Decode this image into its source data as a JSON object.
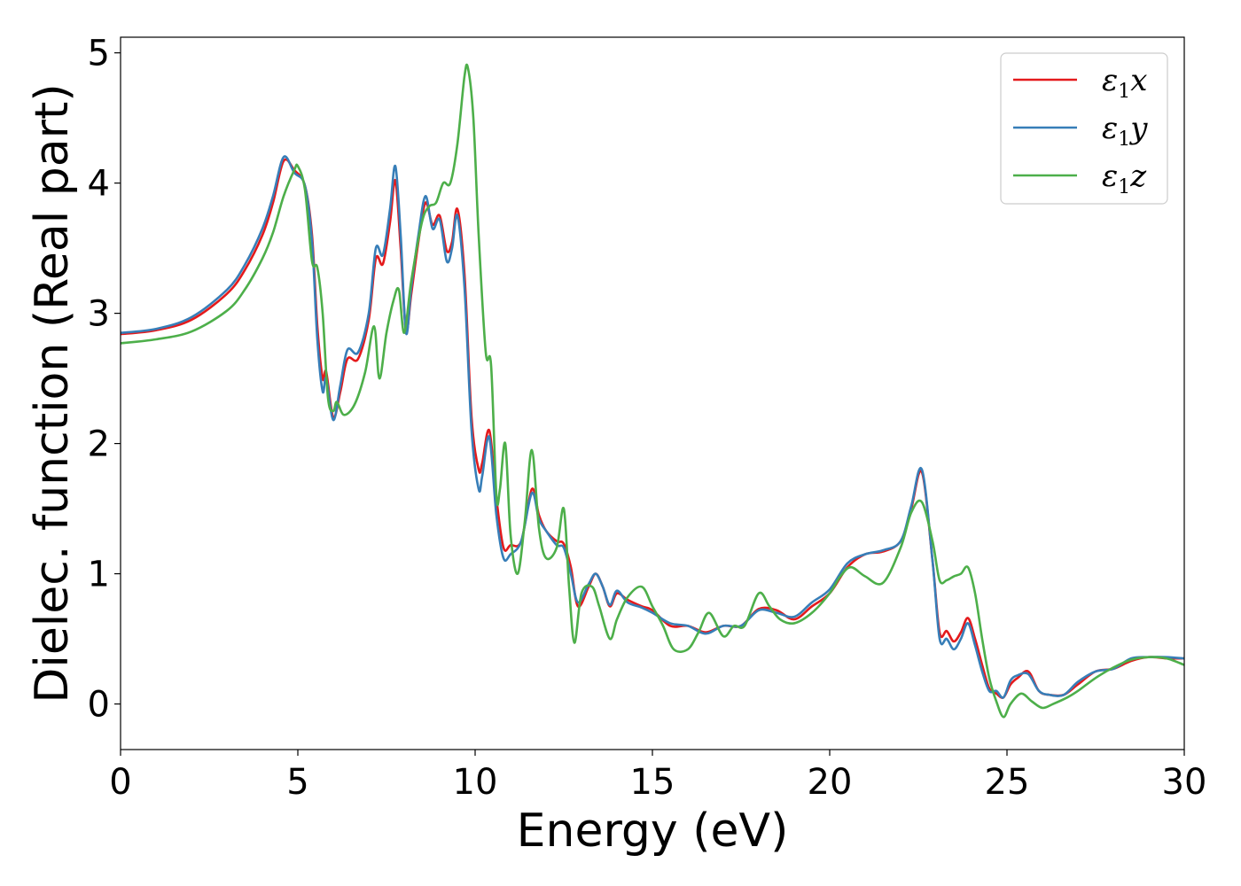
{
  "chart_data": {
    "type": "line",
    "title": "",
    "xlabel": "Energy (eV)",
    "ylabel": "Dielec. function (Real part)",
    "xlim": [
      0,
      30
    ],
    "ylim": [
      -0.35,
      5.12
    ],
    "xticks": [
      0,
      5,
      10,
      15,
      20,
      25,
      30
    ],
    "yticks": [
      0,
      1,
      2,
      3,
      4,
      5
    ],
    "grid": false,
    "legend_position": "top-right",
    "series": [
      {
        "name": "ε1x",
        "legend_base": "ε",
        "legend_sub": "1",
        "legend_tail": "x",
        "color": "#e41a1c",
        "x": [
          0,
          1,
          2,
          3,
          3.5,
          4,
          4.3,
          4.6,
          4.9,
          5.2,
          5.4,
          5.55,
          5.7,
          5.8,
          6.0,
          6.2,
          6.4,
          6.7,
          7.0,
          7.2,
          7.4,
          7.6,
          7.75,
          7.9,
          8.05,
          8.2,
          8.4,
          8.6,
          8.8,
          9.0,
          9.2,
          9.35,
          9.5,
          9.7,
          9.9,
          10.1,
          10.2,
          10.4,
          10.6,
          10.8,
          11.0,
          11.3,
          11.6,
          11.8,
          12.0,
          12.3,
          12.5,
          12.7,
          12.9,
          13.2,
          13.4,
          13.6,
          13.8,
          14.0,
          14.3,
          14.7,
          15.0,
          15.5,
          16.0,
          16.5,
          17.0,
          17.5,
          18.0,
          18.5,
          19.0,
          19.5,
          20.0,
          20.5,
          21.0,
          21.5,
          22.0,
          22.3,
          22.6,
          22.9,
          23.1,
          23.3,
          23.5,
          23.7,
          23.9,
          24.1,
          24.3,
          24.5,
          24.7,
          24.9,
          25.1,
          25.3,
          25.6,
          25.9,
          26.2,
          26.6,
          27.0,
          27.5,
          28.0,
          28.5,
          29.0,
          29.5,
          30.0
        ],
        "y": [
          2.84,
          2.87,
          2.95,
          3.15,
          3.33,
          3.6,
          3.85,
          4.17,
          4.1,
          3.98,
          3.6,
          2.9,
          2.5,
          2.55,
          2.2,
          2.4,
          2.65,
          2.65,
          2.95,
          3.42,
          3.38,
          3.7,
          4.02,
          3.5,
          2.87,
          3.15,
          3.55,
          3.85,
          3.68,
          3.75,
          3.48,
          3.55,
          3.8,
          3.3,
          2.2,
          1.8,
          1.85,
          2.1,
          1.58,
          1.2,
          1.22,
          1.25,
          1.65,
          1.45,
          1.33,
          1.25,
          1.23,
          1.05,
          0.75,
          0.9,
          1.0,
          0.9,
          0.75,
          0.85,
          0.8,
          0.75,
          0.72,
          0.6,
          0.6,
          0.55,
          0.6,
          0.6,
          0.73,
          0.72,
          0.65,
          0.75,
          0.85,
          1.05,
          1.15,
          1.17,
          1.25,
          1.5,
          1.78,
          1.1,
          0.55,
          0.56,
          0.48,
          0.55,
          0.66,
          0.5,
          0.3,
          0.12,
          0.08,
          0.05,
          0.15,
          0.2,
          0.25,
          0.1,
          0.07,
          0.07,
          0.15,
          0.25,
          0.27,
          0.33,
          0.36,
          0.35,
          0.35
        ]
      },
      {
        "name": "ε1y",
        "legend_base": "ε",
        "legend_sub": "1",
        "legend_tail": "y",
        "color": "#377eb8",
        "x": [
          0,
          1,
          2,
          3,
          3.5,
          4,
          4.3,
          4.6,
          4.9,
          5.2,
          5.4,
          5.55,
          5.7,
          5.8,
          6.0,
          6.2,
          6.4,
          6.7,
          7.0,
          7.2,
          7.4,
          7.6,
          7.75,
          7.9,
          8.05,
          8.2,
          8.4,
          8.6,
          8.8,
          9.0,
          9.2,
          9.35,
          9.5,
          9.7,
          9.9,
          10.1,
          10.2,
          10.4,
          10.6,
          10.8,
          11.0,
          11.3,
          11.6,
          11.8,
          12.0,
          12.3,
          12.5,
          12.7,
          12.9,
          13.2,
          13.4,
          13.6,
          13.8,
          14.0,
          14.3,
          14.7,
          15.0,
          15.5,
          16.0,
          16.5,
          17.0,
          17.5,
          18.0,
          18.5,
          19.0,
          19.5,
          20.0,
          20.5,
          21.0,
          21.5,
          22.0,
          22.3,
          22.6,
          22.9,
          23.1,
          23.3,
          23.5,
          23.7,
          23.9,
          24.1,
          24.3,
          24.5,
          24.7,
          24.9,
          25.1,
          25.3,
          25.6,
          25.9,
          26.2,
          26.6,
          27.0,
          27.5,
          28.0,
          28.5,
          29.0,
          29.5,
          30.0
        ],
        "y": [
          2.85,
          2.88,
          2.97,
          3.18,
          3.37,
          3.65,
          3.9,
          4.2,
          4.08,
          3.98,
          3.55,
          2.8,
          2.4,
          2.5,
          2.18,
          2.45,
          2.72,
          2.7,
          3.0,
          3.5,
          3.45,
          3.8,
          4.13,
          3.6,
          2.85,
          3.2,
          3.6,
          3.9,
          3.65,
          3.72,
          3.4,
          3.5,
          3.75,
          3.2,
          2.1,
          1.65,
          1.75,
          2.05,
          1.45,
          1.12,
          1.15,
          1.25,
          1.62,
          1.42,
          1.33,
          1.22,
          1.2,
          1.0,
          0.78,
          0.92,
          1.0,
          0.9,
          0.76,
          0.87,
          0.78,
          0.74,
          0.7,
          0.62,
          0.6,
          0.54,
          0.6,
          0.6,
          0.72,
          0.7,
          0.67,
          0.78,
          0.88,
          1.08,
          1.15,
          1.18,
          1.25,
          1.52,
          1.8,
          1.1,
          0.5,
          0.5,
          0.42,
          0.5,
          0.62,
          0.45,
          0.25,
          0.1,
          0.1,
          0.05,
          0.18,
          0.22,
          0.23,
          0.1,
          0.07,
          0.07,
          0.17,
          0.25,
          0.27,
          0.35,
          0.36,
          0.36,
          0.35
        ]
      },
      {
        "name": "ε1z",
        "legend_base": "ε",
        "legend_sub": "1",
        "legend_tail": "z",
        "color": "#4daf4a",
        "x": [
          0,
          1,
          2,
          3,
          3.5,
          4,
          4.3,
          4.6,
          4.9,
          5.0,
          5.2,
          5.4,
          5.55,
          5.7,
          5.85,
          6.0,
          6.1,
          6.3,
          6.6,
          6.9,
          7.15,
          7.3,
          7.5,
          7.7,
          7.85,
          8.0,
          8.2,
          8.5,
          8.7,
          8.9,
          9.1,
          9.3,
          9.5,
          9.7,
          9.8,
          9.95,
          10.1,
          10.3,
          10.45,
          10.6,
          10.7,
          10.85,
          11.0,
          11.2,
          11.4,
          11.6,
          11.8,
          12.0,
          12.3,
          12.5,
          12.65,
          12.8,
          13.0,
          13.3,
          13.5,
          13.8,
          14.0,
          14.3,
          14.7,
          15.0,
          15.3,
          15.6,
          16.0,
          16.3,
          16.6,
          17.0,
          17.3,
          17.6,
          18.0,
          18.3,
          18.6,
          19.0,
          19.5,
          20.0,
          20.3,
          20.6,
          21.0,
          21.5,
          22.0,
          22.3,
          22.6,
          22.9,
          23.1,
          23.3,
          23.5,
          23.7,
          23.9,
          24.1,
          24.3,
          24.5,
          24.7,
          24.9,
          25.1,
          25.4,
          25.7,
          26.0,
          26.3,
          26.7,
          27.0,
          27.5,
          28.0,
          28.5,
          29.0,
          29.5,
          30.0
        ],
        "y": [
          2.77,
          2.8,
          2.86,
          3.02,
          3.18,
          3.42,
          3.62,
          3.9,
          4.1,
          4.13,
          3.95,
          3.4,
          3.35,
          3.0,
          2.35,
          2.25,
          2.32,
          2.22,
          2.3,
          2.55,
          2.9,
          2.5,
          2.85,
          3.1,
          3.18,
          2.85,
          3.25,
          3.7,
          3.82,
          3.85,
          4.0,
          4.0,
          4.3,
          4.82,
          4.88,
          4.5,
          3.6,
          2.7,
          2.6,
          1.6,
          1.65,
          2.0,
          1.3,
          1.0,
          1.4,
          1.95,
          1.35,
          1.12,
          1.2,
          1.5,
          0.9,
          0.47,
          0.85,
          0.9,
          0.75,
          0.5,
          0.65,
          0.82,
          0.9,
          0.75,
          0.6,
          0.42,
          0.42,
          0.55,
          0.7,
          0.52,
          0.6,
          0.6,
          0.85,
          0.75,
          0.65,
          0.62,
          0.7,
          0.85,
          0.98,
          1.05,
          0.98,
          0.93,
          1.2,
          1.47,
          1.55,
          1.25,
          0.95,
          0.95,
          0.98,
          1.0,
          1.05,
          0.85,
          0.5,
          0.2,
          0.02,
          -0.1,
          0.0,
          0.08,
          0.02,
          -0.03,
          0.0,
          0.05,
          0.1,
          0.2,
          0.28,
          0.34,
          0.36,
          0.35,
          0.3
        ]
      }
    ]
  }
}
